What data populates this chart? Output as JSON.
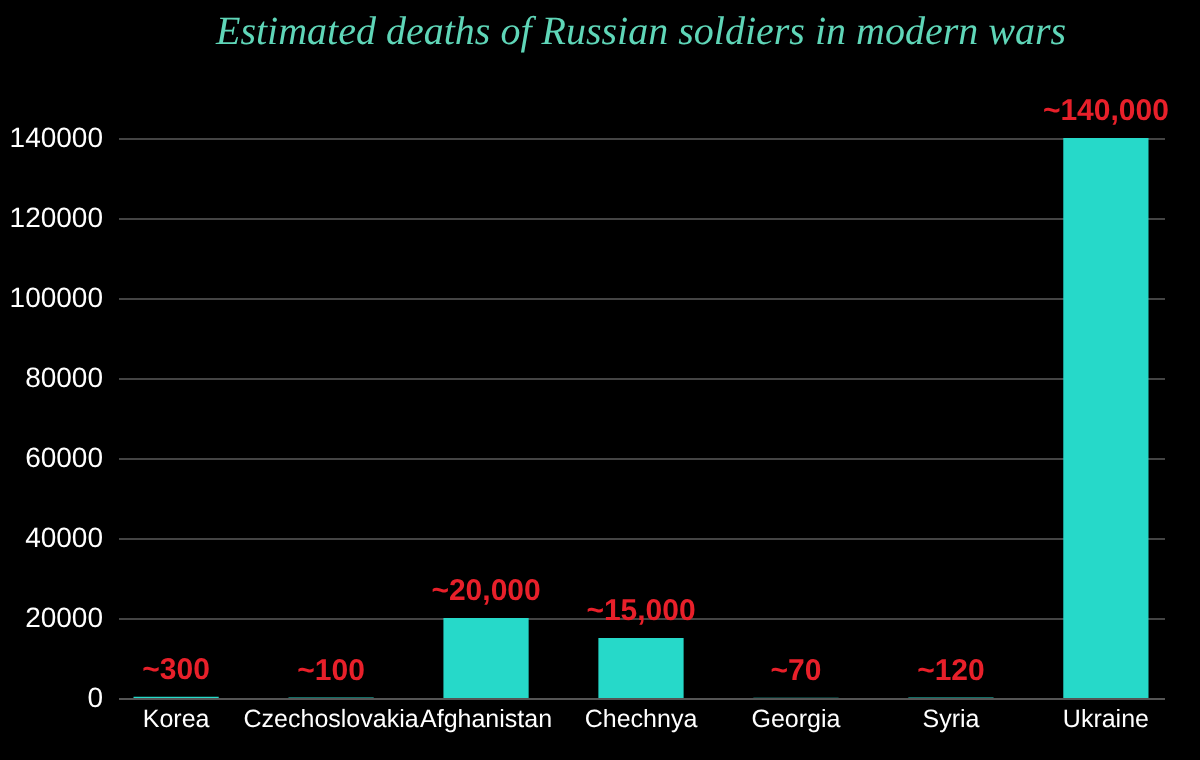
{
  "chart_data": {
    "type": "bar",
    "title": "Estimated deaths of Russian soldiers in modern wars",
    "categories": [
      "Korea",
      "Czechoslovakia",
      "Afghanistan",
      "Chechnya",
      "Georgia",
      "Syria",
      "Ukraine"
    ],
    "values": [
      300,
      100,
      20000,
      15000,
      70,
      120,
      140000
    ],
    "value_labels": [
      "~300",
      "~100",
      "~20,000",
      "~15,000",
      "~70",
      "~120",
      "~140,000"
    ],
    "color": "#26d9c9",
    "ylim": [
      0,
      140000
    ],
    "yticks": [
      0,
      20000,
      40000,
      60000,
      80000,
      100000,
      120000,
      140000
    ],
    "grid": "y"
  }
}
